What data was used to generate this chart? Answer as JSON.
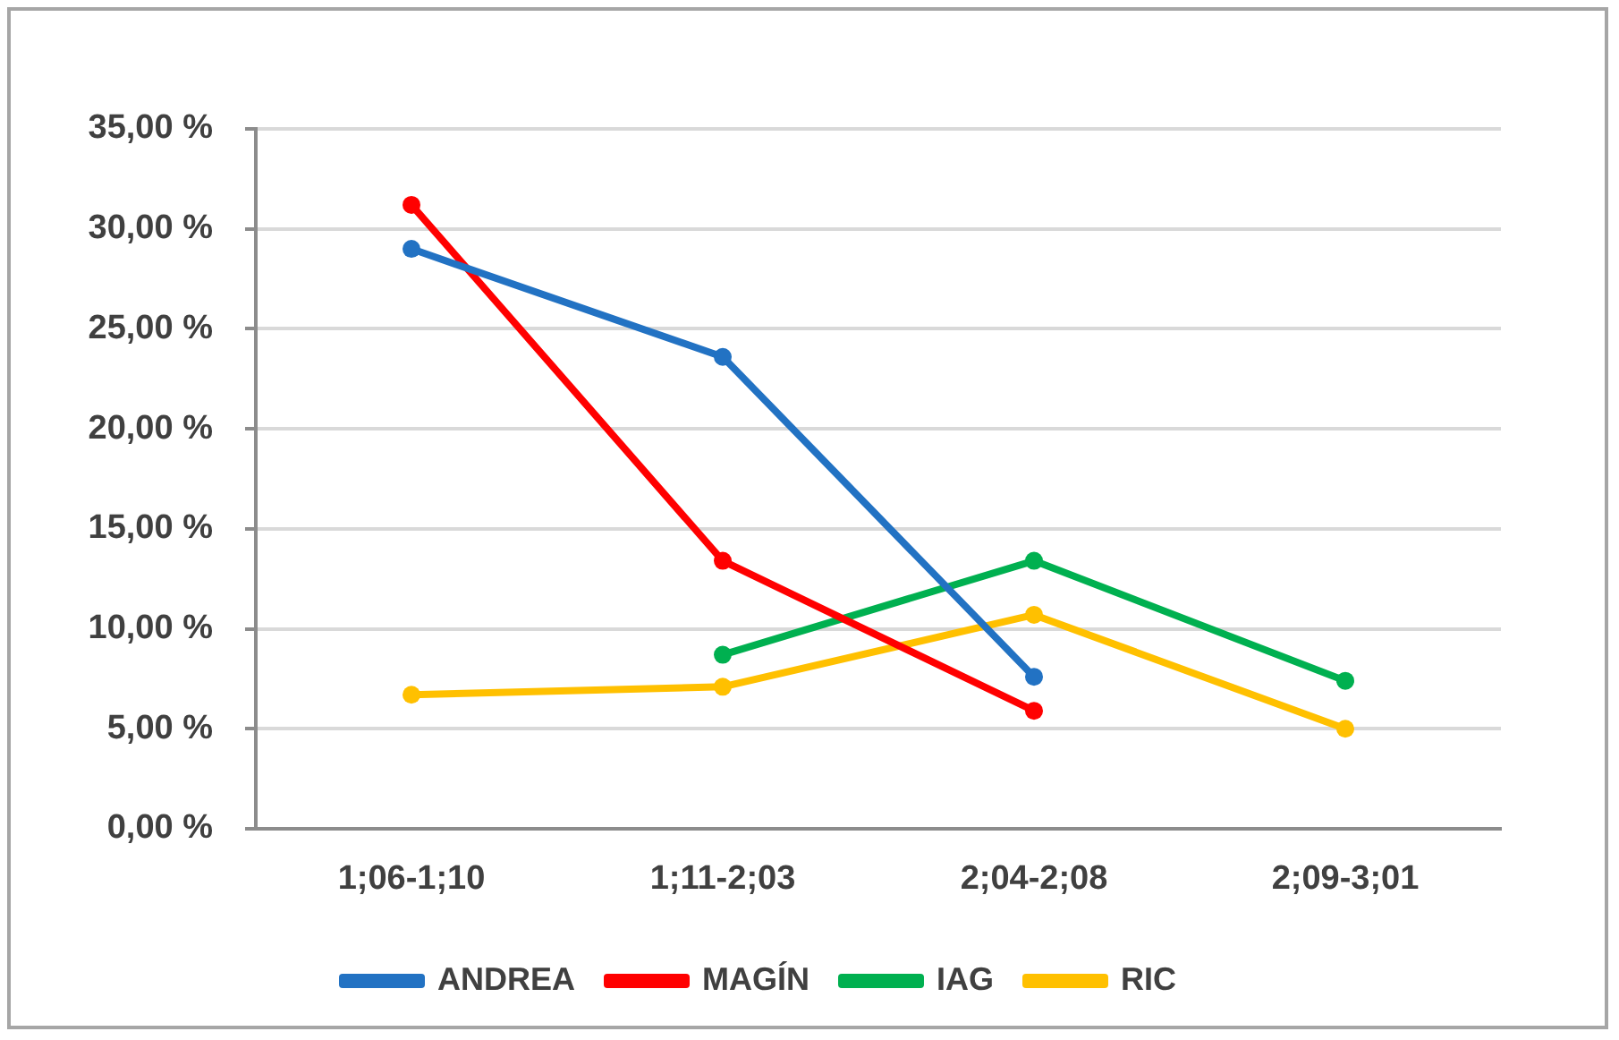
{
  "chart_data": {
    "type": "line",
    "categories": [
      "1;06-1;10",
      "1;11-2;03",
      "2;04-2;08",
      "2;09-3;01"
    ],
    "series": [
      {
        "name": "ANDREA",
        "color": "#2272c3",
        "values": [
          29.0,
          23.6,
          7.6,
          null
        ]
      },
      {
        "name": "MAGÍN",
        "color": "#ff0000",
        "values": [
          31.2,
          13.4,
          5.9,
          null
        ]
      },
      {
        "name": "IAG",
        "color": "#00b050",
        "values": [
          null,
          8.7,
          13.4,
          7.4
        ]
      },
      {
        "name": "RIC",
        "color": "#ffc000",
        "values": [
          6.7,
          7.1,
          10.7,
          5.0
        ]
      }
    ],
    "ylim": [
      0,
      35
    ],
    "yticks": [
      {
        "value": 0,
        "label": "0,00 %"
      },
      {
        "value": 5,
        "label": "5,00 %"
      },
      {
        "value": 10,
        "label": "10,00 %"
      },
      {
        "value": 15,
        "label": "15,00 %"
      },
      {
        "value": 20,
        "label": "20,00 %"
      },
      {
        "value": 25,
        "label": "25,00 %"
      },
      {
        "value": 30,
        "label": "30,00 %"
      },
      {
        "value": 35,
        "label": "35,00 %"
      }
    ],
    "grid": "y",
    "legend": "bottom",
    "marker": "circle",
    "line_style": "solid"
  }
}
